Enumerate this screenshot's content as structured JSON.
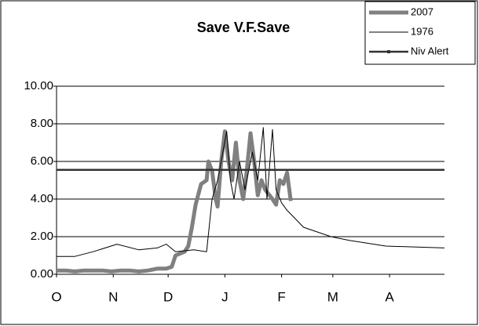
{
  "chart_data": {
    "type": "line",
    "title": "Save V.F.Save",
    "xlim": [
      0,
      212
    ],
    "xticks": [
      {
        "value": 0,
        "label": "O"
      },
      {
        "value": 31,
        "label": "N"
      },
      {
        "value": 61,
        "label": "D"
      },
      {
        "value": 92,
        "label": "J"
      },
      {
        "value": 123,
        "label": "F"
      },
      {
        "value": 151,
        "label": "M"
      },
      {
        "value": 182,
        "label": "A"
      }
    ],
    "ylim": [
      0,
      10
    ],
    "yticks": [
      {
        "value": 0,
        "label": "0.00"
      },
      {
        "value": 2,
        "label": "2.00"
      },
      {
        "value": 4,
        "label": "4.00"
      },
      {
        "value": 6,
        "label": "6.00"
      },
      {
        "value": 8,
        "label": "8.00"
      },
      {
        "value": 10,
        "label": "10.00"
      }
    ],
    "grid": true,
    "legend": "top-right",
    "series": [
      {
        "name": "2007",
        "color": "#808080",
        "x": [
          0,
          5,
          10,
          15,
          20,
          25,
          30,
          35,
          40,
          45,
          50,
          55,
          60,
          63,
          65,
          70,
          72,
          74,
          76,
          79,
          82,
          83,
          85,
          87,
          88,
          90,
          92,
          94,
          96,
          98,
          100,
          102,
          104,
          106,
          108,
          110,
          112,
          114,
          118,
          120,
          122,
          124,
          126,
          128
        ],
        "values": [
          0.2,
          0.2,
          0.15,
          0.2,
          0.2,
          0.2,
          0.15,
          0.2,
          0.2,
          0.15,
          0.2,
          0.3,
          0.3,
          0.4,
          1.0,
          1.2,
          1.5,
          2.5,
          3.7,
          4.8,
          5.0,
          6.0,
          5.5,
          4.0,
          3.6,
          6.0,
          7.6,
          6.0,
          5.0,
          7.0,
          5.0,
          4.0,
          5.5,
          7.5,
          6.0,
          4.2,
          5.0,
          4.5,
          4.0,
          3.7,
          5.0,
          4.8,
          5.4,
          3.9
        ]
      },
      {
        "name": "1976",
        "color": "#000000",
        "x": [
          0,
          10,
          20,
          33,
          45,
          55,
          60,
          65,
          75,
          82,
          85,
          88,
          90,
          93,
          95,
          97,
          100,
          103,
          107,
          110,
          113,
          115,
          118,
          120,
          123,
          126,
          135,
          150,
          160,
          180,
          212
        ],
        "values": [
          0.95,
          0.95,
          1.2,
          1.6,
          1.3,
          1.4,
          1.6,
          1.2,
          1.3,
          1.2,
          4.0,
          5.0,
          6.0,
          7.6,
          5.0,
          4.0,
          6.0,
          4.5,
          6.5,
          5.0,
          7.8,
          4.0,
          7.7,
          4.5,
          3.8,
          3.4,
          2.5,
          2.0,
          1.8,
          1.5,
          1.4
        ]
      },
      {
        "name": "Niv Alert",
        "color": "#333333",
        "x": [
          0,
          212
        ],
        "values": [
          5.55,
          5.55
        ]
      }
    ]
  }
}
